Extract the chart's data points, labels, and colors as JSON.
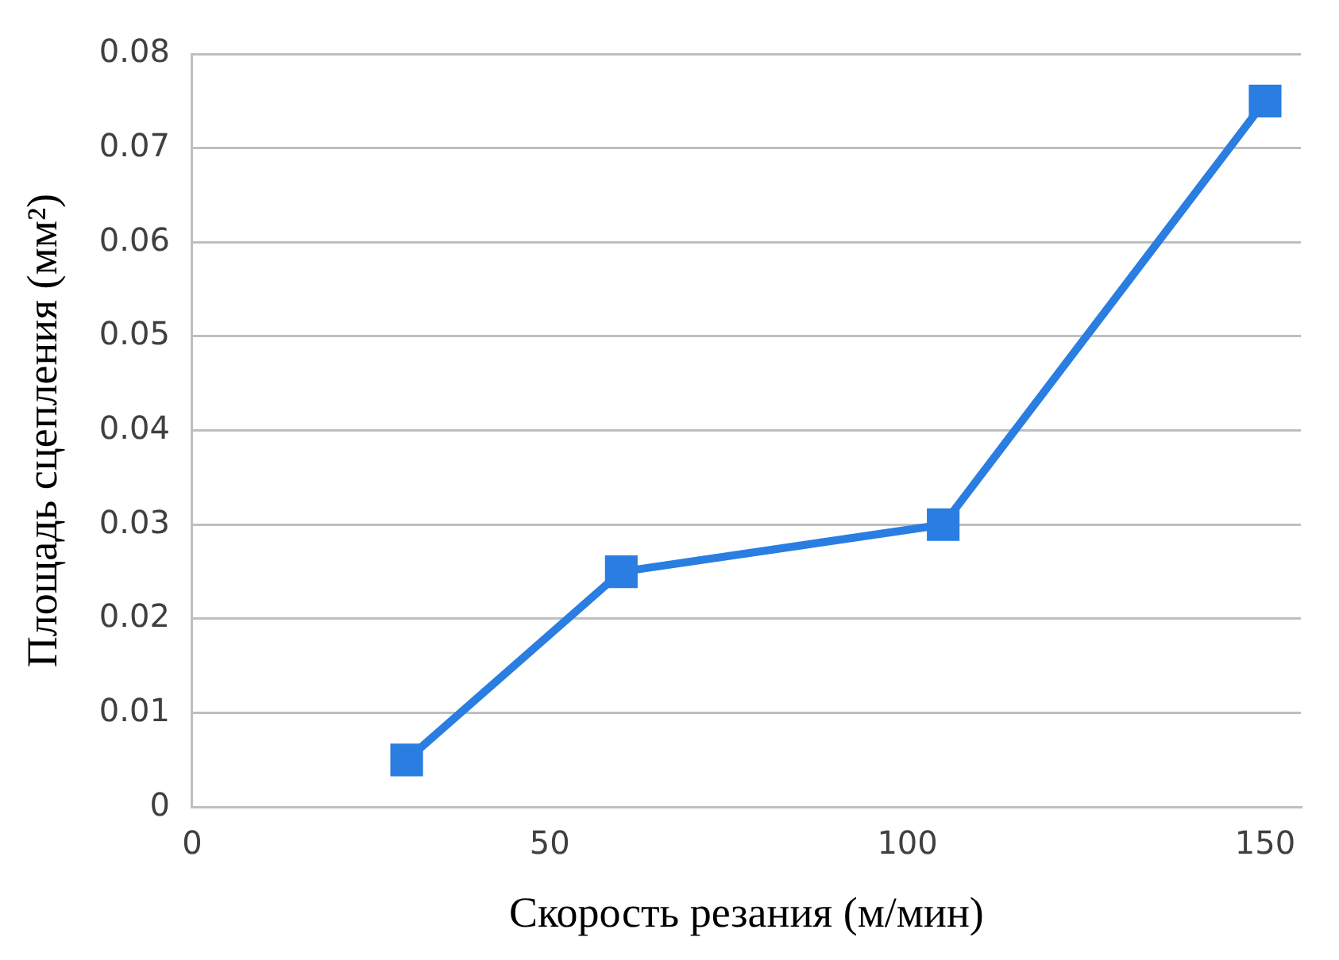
{
  "chart_data": {
    "type": "line",
    "xlabel": "Скорость резания (м/мин)",
    "ylabel": "Площадь сцепления (мм²)",
    "x": [
      30,
      60,
      105,
      150
    ],
    "series": [
      {
        "color": "#2a7de1",
        "values": [
          0.005,
          0.025,
          0.03,
          0.075
        ]
      }
    ],
    "xlim": [
      0,
      155
    ],
    "xticks": [
      0,
      50,
      100,
      150
    ],
    "ylim": [
      0,
      0.08
    ],
    "yticks": [
      0,
      0.01,
      0.02,
      0.03,
      0.04,
      0.05,
      0.06,
      0.07,
      0.08
    ],
    "grid": "y",
    "legend": false,
    "marker": "square",
    "line_style": "solid"
  }
}
